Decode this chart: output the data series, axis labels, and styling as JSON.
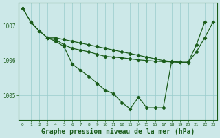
{
  "background_color": "#cce8e8",
  "grid_color": "#99cccc",
  "line_color": "#1a5c1a",
  "marker_color": "#1a5c1a",
  "xlabel": "Graphe pression niveau de la mer (hPa)",
  "xlabel_fontsize": 7.0,
  "xlim": [
    -0.5,
    23.5
  ],
  "ylim": [
    1004.3,
    1007.65
  ],
  "yticks": [
    1005,
    1006,
    1007
  ],
  "xticks": [
    0,
    1,
    2,
    3,
    4,
    5,
    6,
    7,
    8,
    9,
    10,
    11,
    12,
    13,
    14,
    15,
    16,
    17,
    18,
    19,
    20,
    21,
    22,
    23
  ],
  "series1_x": [
    0,
    1,
    2,
    3,
    4,
    5,
    6,
    7,
    8,
    9,
    10,
    11,
    12,
    13,
    14,
    15,
    16,
    17,
    18,
    19,
    20,
    21,
    22,
    23
  ],
  "series1_y": [
    1007.5,
    1007.1,
    1006.85,
    1006.65,
    1006.65,
    1006.6,
    1006.55,
    1006.5,
    1006.45,
    1006.4,
    1006.35,
    1006.3,
    1006.25,
    1006.2,
    1006.15,
    1006.1,
    1006.05,
    1006.0,
    1005.97,
    1005.95,
    1005.95,
    1006.25,
    1006.65,
    1007.1
  ],
  "series2_x": [
    0,
    1,
    2,
    3,
    4,
    5,
    6,
    7,
    8,
    9,
    10,
    11,
    12,
    13,
    14,
    15,
    16,
    17,
    18,
    19,
    20,
    21,
    22
  ],
  "series2_y": [
    1007.5,
    1007.1,
    1006.85,
    1006.65,
    1006.55,
    1006.4,
    1005.9,
    1005.72,
    1005.55,
    1005.35,
    1005.15,
    1005.05,
    1004.8,
    1004.62,
    1004.95,
    1004.65,
    1004.65,
    1004.65,
    1005.97,
    1005.95,
    1005.95,
    1006.45,
    1007.1
  ],
  "series3_x": [
    3,
    4,
    5,
    6,
    7,
    8,
    9,
    10,
    11,
    12,
    13,
    14,
    15,
    16,
    17,
    18,
    19,
    20
  ],
  "series3_y": [
    1006.65,
    1006.6,
    1006.45,
    1006.35,
    1006.3,
    1006.25,
    1006.18,
    1006.12,
    1006.1,
    1006.08,
    1006.05,
    1006.02,
    1006.0,
    1005.98,
    1005.97,
    1005.96,
    1005.95,
    1005.93
  ]
}
